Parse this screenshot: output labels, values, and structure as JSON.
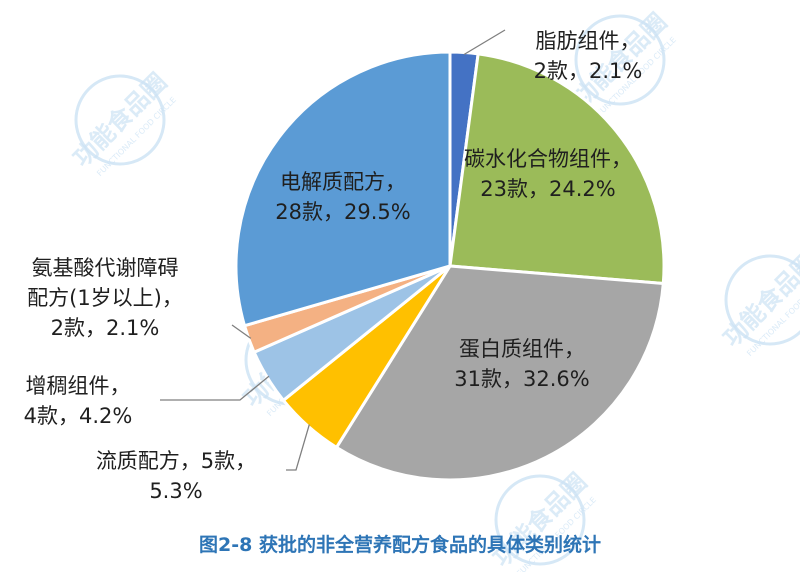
{
  "chart_data": {
    "type": "pie",
    "caption": "图2-8 获批的非全营养配方食品的具体类别统计",
    "slices": [
      {
        "name": "脂肪组件",
        "count_label": "2款",
        "percent_label": "2.1%",
        "value": 2.1,
        "color": "#4472c4"
      },
      {
        "name": "碳水化合物组件",
        "count_label": "23款",
        "percent_label": "24.2%",
        "value": 24.2,
        "color": "#9bbb59"
      },
      {
        "name": "蛋白质组件",
        "count_label": "31款",
        "percent_label": "32.6%",
        "value": 32.6,
        "color": "#a6a6a6"
      },
      {
        "name": "流质配方",
        "count_label": "5款",
        "percent_label": "5.3%",
        "value": 5.3,
        "color": "#ffc000"
      },
      {
        "name": "增稠组件",
        "count_label": "4款",
        "percent_label": "4.2%",
        "value": 4.2,
        "color": "#9dc3e6"
      },
      {
        "name": "氨基酸代谢障碍配方(1岁以上)",
        "count_label": "2款",
        "percent_label": "2.1%",
        "value": 2.1,
        "color": "#f4b183"
      },
      {
        "name": "电解质配方",
        "count_label": "28款",
        "percent_label": "29.5%",
        "value": 29.5,
        "color": "#5b9bd5"
      }
    ],
    "label_lines": {
      "fat": [
        "脂肪组件，",
        "2款，2.1%"
      ],
      "carb": [
        "碳水化合物组件，",
        "23款，24.2%"
      ],
      "protein": [
        "蛋白质组件，",
        "31款，32.6%"
      ],
      "liquid": [
        "流质配方，5款，",
        "5.3%"
      ],
      "thick": [
        "增稠组件，",
        "4款，4.2%"
      ],
      "amino": [
        "氨基酸代谢障碍",
        "配方(1岁以上)，",
        "2款，2.1%"
      ],
      "electrolyte": [
        "电解质配方，",
        "28款，29.5%"
      ]
    }
  },
  "watermark": {
    "logo_text": "功能食品圈",
    "sub_text": "FUNCTIONAL FOOD CIRCLE"
  }
}
